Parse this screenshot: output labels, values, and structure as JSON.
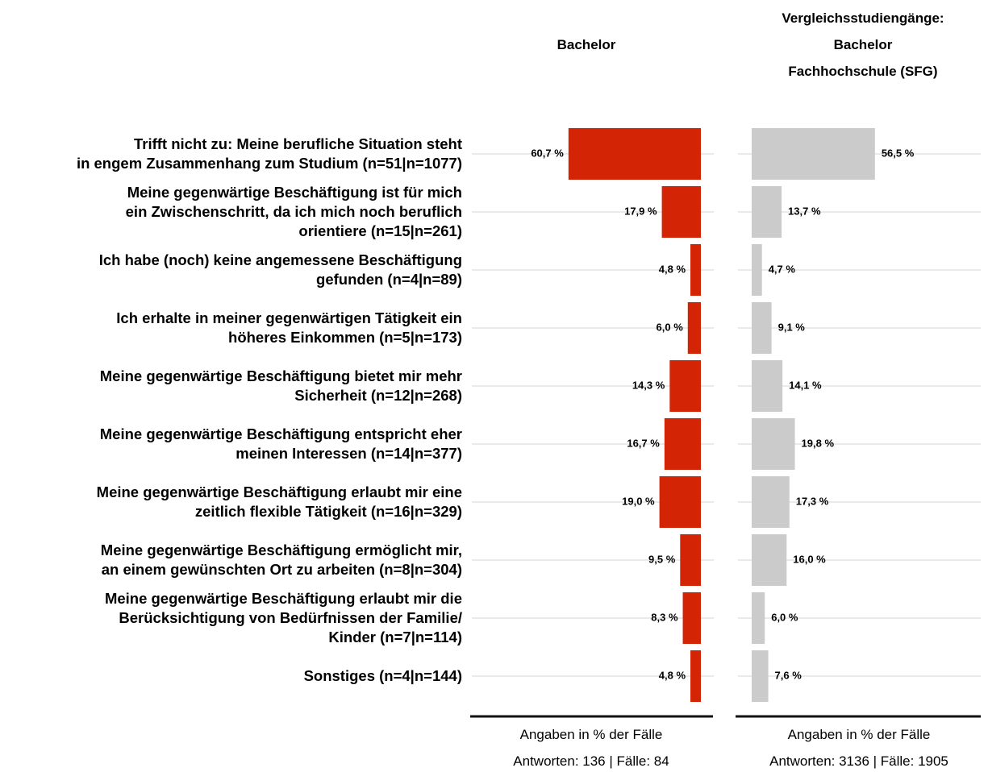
{
  "chart_data": [
    {
      "type": "bar",
      "orientation": "horizontal",
      "reversed": true,
      "title": "Bachelor",
      "categories": [
        "Trifft nicht zu: Meine berufliche Situation steht\nin engem Zusammenhang zum Studium (n=51|n=1077)",
        "Meine gegenwärtige Beschäftigung ist für mich\nein Zwischenschritt, da ich mich noch beruflich\norientiere (n=15|n=261)",
        "Ich habe (noch) keine angemessene Beschäftigung\ngefunden (n=4|n=89)",
        "Ich erhalte in meiner gegenwärtigen Tätigkeit ein\nhöheres Einkommen (n=5|n=173)",
        "Meine gegenwärtige Beschäftigung bietet mir mehr\nSicherheit (n=12|n=268)",
        "Meine gegenwärtige Beschäftigung entspricht eher\nmeinen Interessen (n=14|n=377)",
        "Meine gegenwärtige Beschäftigung erlaubt mir eine\nzeitlich flexible Tätigkeit (n=16|n=329)",
        "Meine gegenwärtige Beschäftigung ermöglicht mir,\nan einem gewünschten Ort zu arbeiten (n=8|n=304)",
        "Meine gegenwärtige Beschäftigung erlaubt mir die\nBerücksichtigung von Bedürfnissen der Familie/\nKinder (n=7|n=114)",
        "Sonstiges (n=4|n=144)"
      ],
      "values": [
        60.7,
        17.9,
        4.8,
        6.0,
        14.3,
        16.7,
        19.0,
        9.5,
        8.3,
        4.8
      ],
      "value_labels": [
        "60,7 %",
        "17,9 %",
        "4,8 %",
        "6,0 %",
        "14,3 %",
        "16,7 %",
        "19,0 %",
        "9,5 %",
        "8,3 %",
        "4,8 %"
      ],
      "color": "#d42406",
      "xlim": [
        0,
        105
      ],
      "grid": true,
      "xlabel": "Angaben in % der Fälle",
      "note": "Antworten: 136 | Fälle: 84"
    },
    {
      "type": "bar",
      "orientation": "horizontal",
      "reversed": false,
      "title": "Vergleichsstudiengänge:\nBachelor\nFachhochschule (SFG)",
      "values": [
        56.5,
        13.7,
        4.7,
        9.1,
        14.1,
        19.8,
        17.3,
        16.0,
        6.0,
        7.6
      ],
      "value_labels": [
        "56,5 %",
        "13,7 %",
        "4,7 %",
        "9,1 %",
        "14,1 %",
        "19,8 %",
        "17,3 %",
        "16,0 %",
        "6,0 %",
        "7,6 %"
      ],
      "color": "#cbcbcb",
      "xlim": [
        0,
        105
      ],
      "grid": true,
      "xlabel": "Angaben in % der Fälle",
      "note": "Antworten: 3136 | Fälle: 1905"
    }
  ]
}
